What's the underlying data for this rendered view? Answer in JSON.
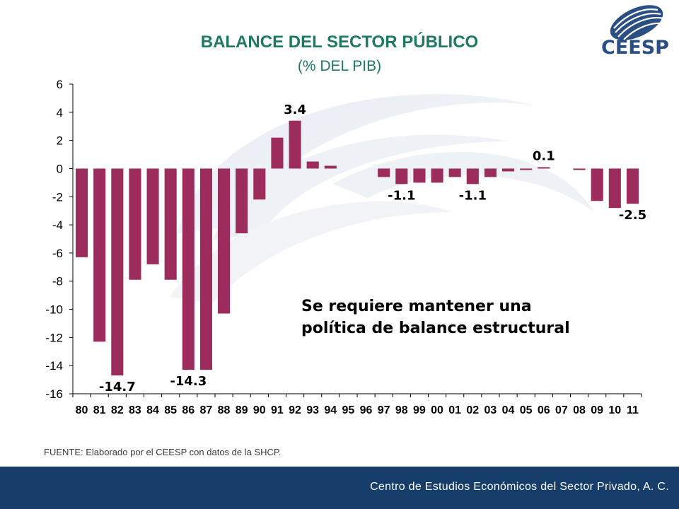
{
  "header": {
    "title": "BALANCE DEL SECTOR PÚBLICO",
    "subtitle": "(% DEL PIB)",
    "logo_text": "CEESP"
  },
  "colors": {
    "title": "#1e7a5e",
    "bar": "#9b2c5c",
    "logo": "#2a4f85",
    "footer": "#173e6b"
  },
  "annotation": {
    "line1": "Se requiere mantener una",
    "line2": "política de balance estructural"
  },
  "source": "FUENTE: Elaborado por el CEESP con datos de la SHCP.",
  "footer": {
    "text": "Centro de Estudios Económicos del Sector Privado, A. C."
  },
  "chart_data": {
    "type": "bar",
    "title": "BALANCE DEL SECTOR PÚBLICO",
    "subtitle": "(% DEL PIB)",
    "categories": [
      "80",
      "81",
      "82",
      "83",
      "84",
      "85",
      "86",
      "87",
      "88",
      "89",
      "90",
      "91",
      "92",
      "93",
      "94",
      "95",
      "96",
      "97",
      "98",
      "99",
      "00",
      "01",
      "02",
      "03",
      "04",
      "05",
      "06",
      "07",
      "08",
      "09",
      "10",
      "11"
    ],
    "values": [
      -6.3,
      -12.3,
      -14.7,
      -7.9,
      -6.8,
      -7.9,
      -14.3,
      -14.3,
      -10.3,
      -4.6,
      -2.2,
      2.2,
      3.4,
      0.5,
      0.2,
      0,
      0,
      -0.6,
      -1.1,
      -1.0,
      -1.0,
      -0.6,
      -1.1,
      -0.6,
      -0.2,
      -0.1,
      0.1,
      0,
      -0.1,
      -2.3,
      -2.8,
      -2.5
    ],
    "data_labels": [
      {
        "index": 2,
        "text": "-14.7"
      },
      {
        "index": 6,
        "text": "-14.3"
      },
      {
        "index": 12,
        "text": "3.4"
      },
      {
        "index": 18,
        "text": "-1.1"
      },
      {
        "index": 22,
        "text": "-1.1"
      },
      {
        "index": 26,
        "text": "0.1"
      },
      {
        "index": 31,
        "text": "-2.5"
      }
    ],
    "yticks": [
      6,
      4,
      2,
      0,
      -2,
      -4,
      -6,
      -8,
      -10,
      -12,
      -14,
      -16
    ],
    "ylim": [
      -16,
      6
    ],
    "grid": false,
    "legend": "none"
  }
}
